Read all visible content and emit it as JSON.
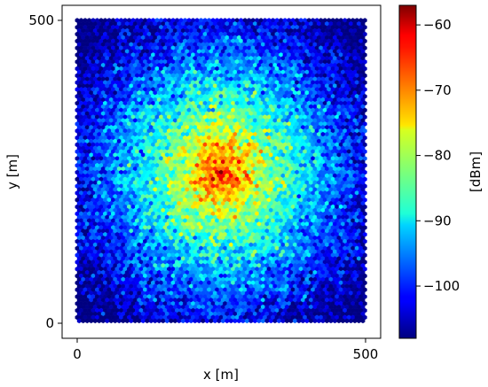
{
  "chart_data": {
    "type": "heatmap",
    "plot_kind": "hexbin",
    "title": "",
    "xlabel": "x [m]",
    "ylabel": "y [m]",
    "colorbar_label": "[dBm]",
    "colormap": "jet",
    "xlim": [
      -25,
      525
    ],
    "ylim": [
      -25,
      525
    ],
    "x_ticks": [
      0,
      500
    ],
    "y_ticks": [
      0,
      500
    ],
    "x_tick_labels": [
      "0",
      "500"
    ],
    "y_tick_labels": [
      "0",
      "500"
    ],
    "color_range": [
      -108,
      -57
    ],
    "colorbar_ticks": [
      -60,
      -70,
      -80,
      -90,
      -100
    ],
    "colorbar_tick_labels": [
      "−60",
      "−70",
      "−80",
      "−90",
      "−100"
    ],
    "grid": false,
    "field": {
      "x_range": [
        0,
        500
      ],
      "y_range": [
        0,
        500
      ],
      "peak_x": 250,
      "peak_y": 250,
      "peak_value": -57,
      "edge_value": -102,
      "corner_value": -104,
      "noise_dB": 4
    }
  }
}
